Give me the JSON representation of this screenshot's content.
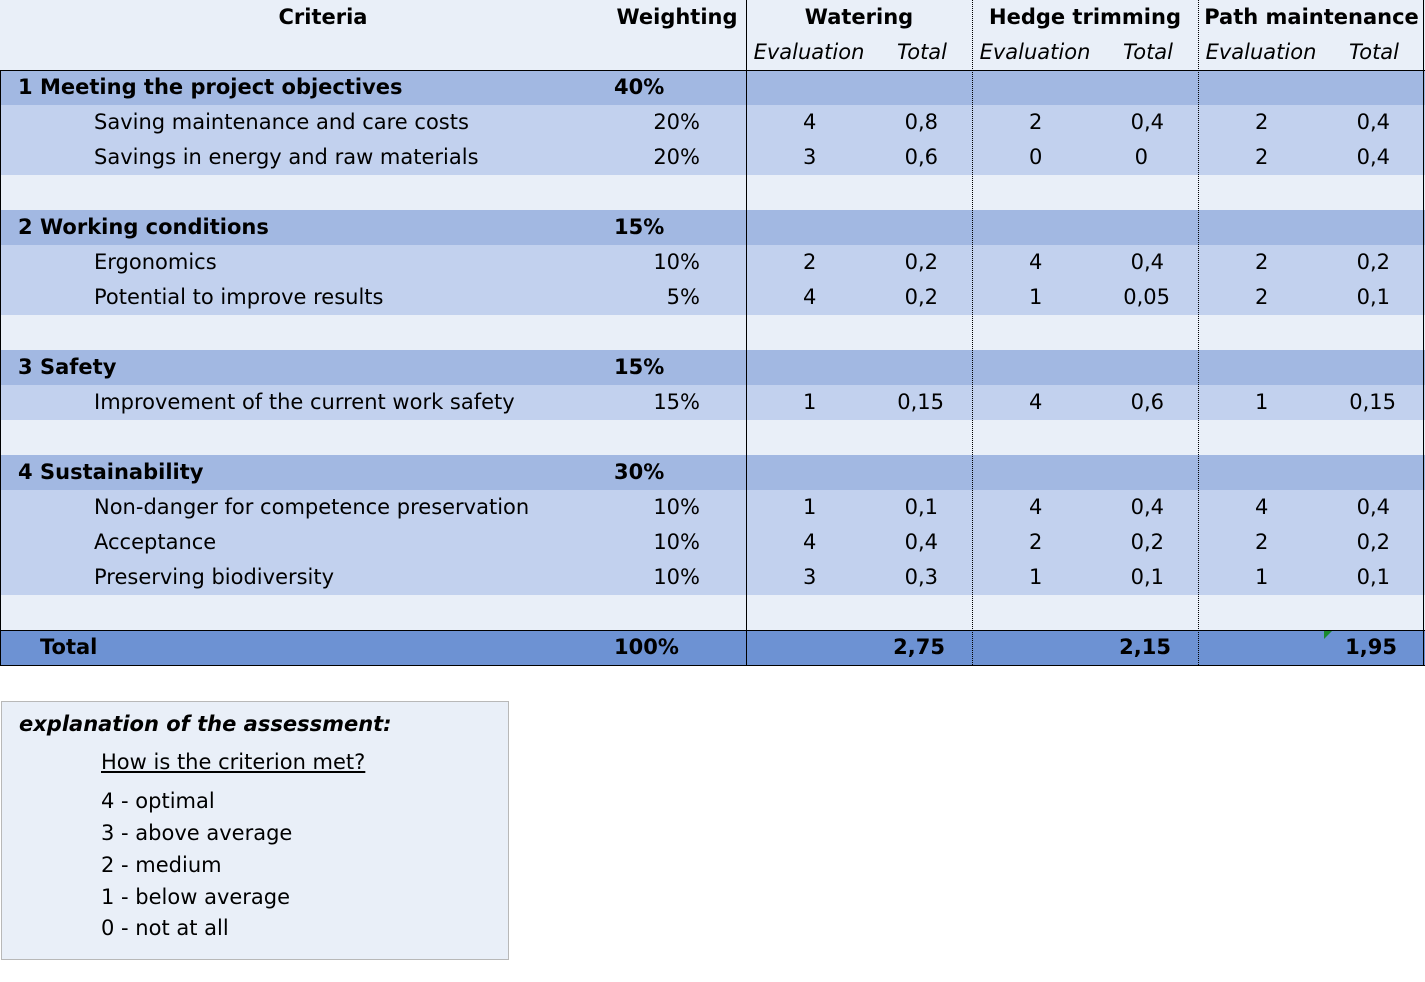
{
  "header": {
    "criteria": "Criteria",
    "weighting": "Weighting",
    "options": [
      {
        "name": "Watering",
        "eval_label": "Evaluation",
        "total_label": "Total"
      },
      {
        "name": "Hedge trimming",
        "eval_label": "Evaluation",
        "total_label": "Total"
      },
      {
        "name": "Path maintenance",
        "eval_label": "Evaluation",
        "total_label": "Total"
      }
    ]
  },
  "groups": [
    {
      "number": "1",
      "title": "Meeting the project objectives",
      "weight": "40%",
      "items": [
        {
          "label": "Saving maintenance and care costs",
          "weight": "20%",
          "scores": [
            [
              "4",
              "0,8"
            ],
            [
              "2",
              "0,4"
            ],
            [
              "2",
              "0,4"
            ]
          ]
        },
        {
          "label": "Savings in energy and raw materials",
          "weight": "20%",
          "scores": [
            [
              "3",
              "0,6"
            ],
            [
              "0",
              "0"
            ],
            [
              "2",
              "0,4"
            ]
          ]
        }
      ]
    },
    {
      "number": "2",
      "title": "Working conditions",
      "weight": "15%",
      "items": [
        {
          "label": "Ergonomics",
          "weight": "10%",
          "scores": [
            [
              "2",
              "0,2"
            ],
            [
              "4",
              "0,4"
            ],
            [
              "2",
              "0,2"
            ]
          ]
        },
        {
          "label": "Potential to improve results",
          "weight": "5%",
          "scores": [
            [
              "4",
              "0,2"
            ],
            [
              "1",
              "0,05"
            ],
            [
              "2",
              "0,1"
            ]
          ]
        }
      ]
    },
    {
      "number": "3",
      "title": "Safety",
      "weight": "15%",
      "items": [
        {
          "label": "Improvement of the current work safety",
          "weight": "15%",
          "scores": [
            [
              "1",
              "0,15"
            ],
            [
              "4",
              "0,6"
            ],
            [
              "1",
              "0,15"
            ]
          ]
        }
      ]
    },
    {
      "number": "4",
      "title": "Sustainability",
      "weight": "30%",
      "items": [
        {
          "label": "Non-danger for competence preservation",
          "weight": "10%",
          "scores": [
            [
              "1",
              "0,1"
            ],
            [
              "4",
              "0,4"
            ],
            [
              "4",
              "0,4"
            ]
          ]
        },
        {
          "label": "Acceptance",
          "weight": "10%",
          "scores": [
            [
              "4",
              "0,4"
            ],
            [
              "2",
              "0,2"
            ],
            [
              "2",
              "0,2"
            ]
          ]
        },
        {
          "label": "Preserving biodiversity",
          "weight": "10%",
          "scores": [
            [
              "3",
              "0,3"
            ],
            [
              "1",
              "0,1"
            ],
            [
              "1",
              "0,1"
            ]
          ]
        }
      ]
    }
  ],
  "total": {
    "label": "Total",
    "weight": "100%",
    "values": [
      "2,75",
      "2,15",
      "1,95"
    ]
  },
  "legend": {
    "title": "explanation of the assessment:",
    "subtitle": "How is the criterion met?",
    "items": [
      "4 - optimal",
      "3 - above average",
      "2 - medium",
      "1 - below average",
      "0 - not at all"
    ]
  },
  "colors": {
    "header_bg": "#e9eff8",
    "group_bg": "#a2b8e2",
    "item_bg": "#c2d1ee",
    "total_bg": "#6d92d3",
    "comment_flag": "#1a8a2e"
  }
}
